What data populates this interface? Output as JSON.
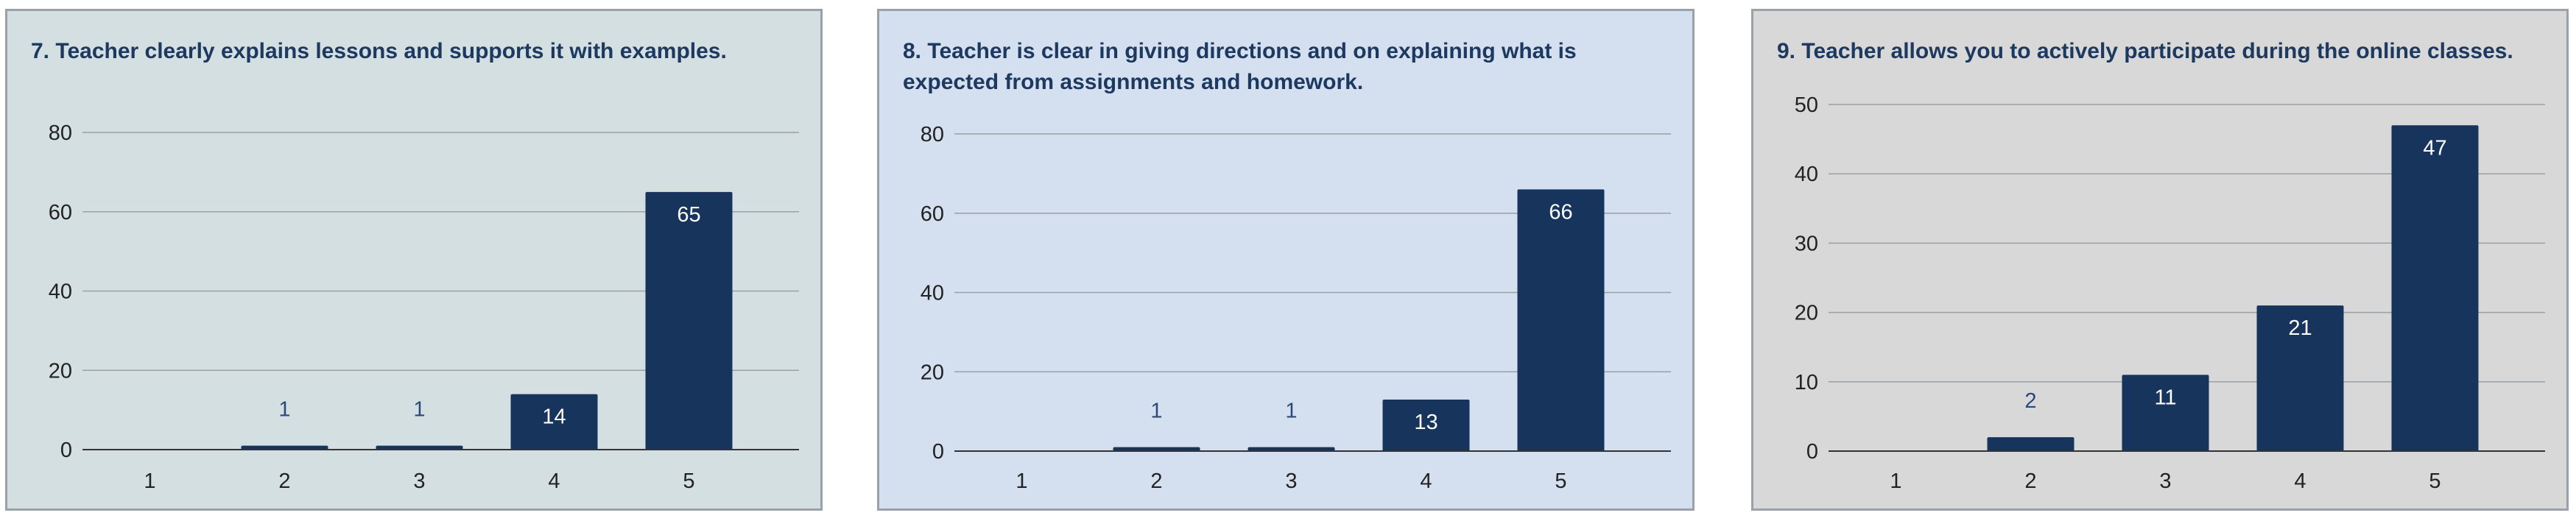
{
  "charts": [
    {
      "background": "#d4dfe2"
    },
    {
      "background": "#d4e0ef"
    },
    {
      "background": "#d8d8d8"
    }
  ],
  "bar_color": "#17345c",
  "chart_data": [
    {
      "type": "bar",
      "title": "7. Teacher clearly explains lessons and supports it with examples.",
      "categories": [
        "1",
        "2",
        "3",
        "4",
        "5"
      ],
      "values": [
        0,
        1,
        1,
        14,
        65
      ],
      "data_labels": [
        "",
        "1",
        "1",
        "14",
        "65"
      ],
      "ylim": [
        0,
        80
      ],
      "yticks": [
        0,
        20,
        40,
        60,
        80
      ],
      "grid": true,
      "xlabel": "",
      "ylabel": ""
    },
    {
      "type": "bar",
      "title": "8. Teacher is clear in giving directions and on explaining what is expected from assignments and homework.",
      "categories": [
        "1",
        "2",
        "3",
        "4",
        "5"
      ],
      "values": [
        0,
        1,
        1,
        13,
        66
      ],
      "data_labels": [
        "",
        "1",
        "1",
        "13",
        "66"
      ],
      "ylim": [
        0,
        80
      ],
      "yticks": [
        0,
        20,
        40,
        60,
        80
      ],
      "grid": true,
      "xlabel": "",
      "ylabel": ""
    },
    {
      "type": "bar",
      "title": "9. Teacher allows you to actively participate during the online classes.",
      "categories": [
        "1",
        "2",
        "3",
        "4",
        "5"
      ],
      "values": [
        0,
        2,
        11,
        21,
        47
      ],
      "data_labels": [
        "",
        "2",
        "11",
        "21",
        "47"
      ],
      "ylim": [
        0,
        50
      ],
      "yticks": [
        0,
        10,
        20,
        30,
        40,
        50
      ],
      "grid": true,
      "xlabel": "",
      "ylabel": ""
    }
  ]
}
